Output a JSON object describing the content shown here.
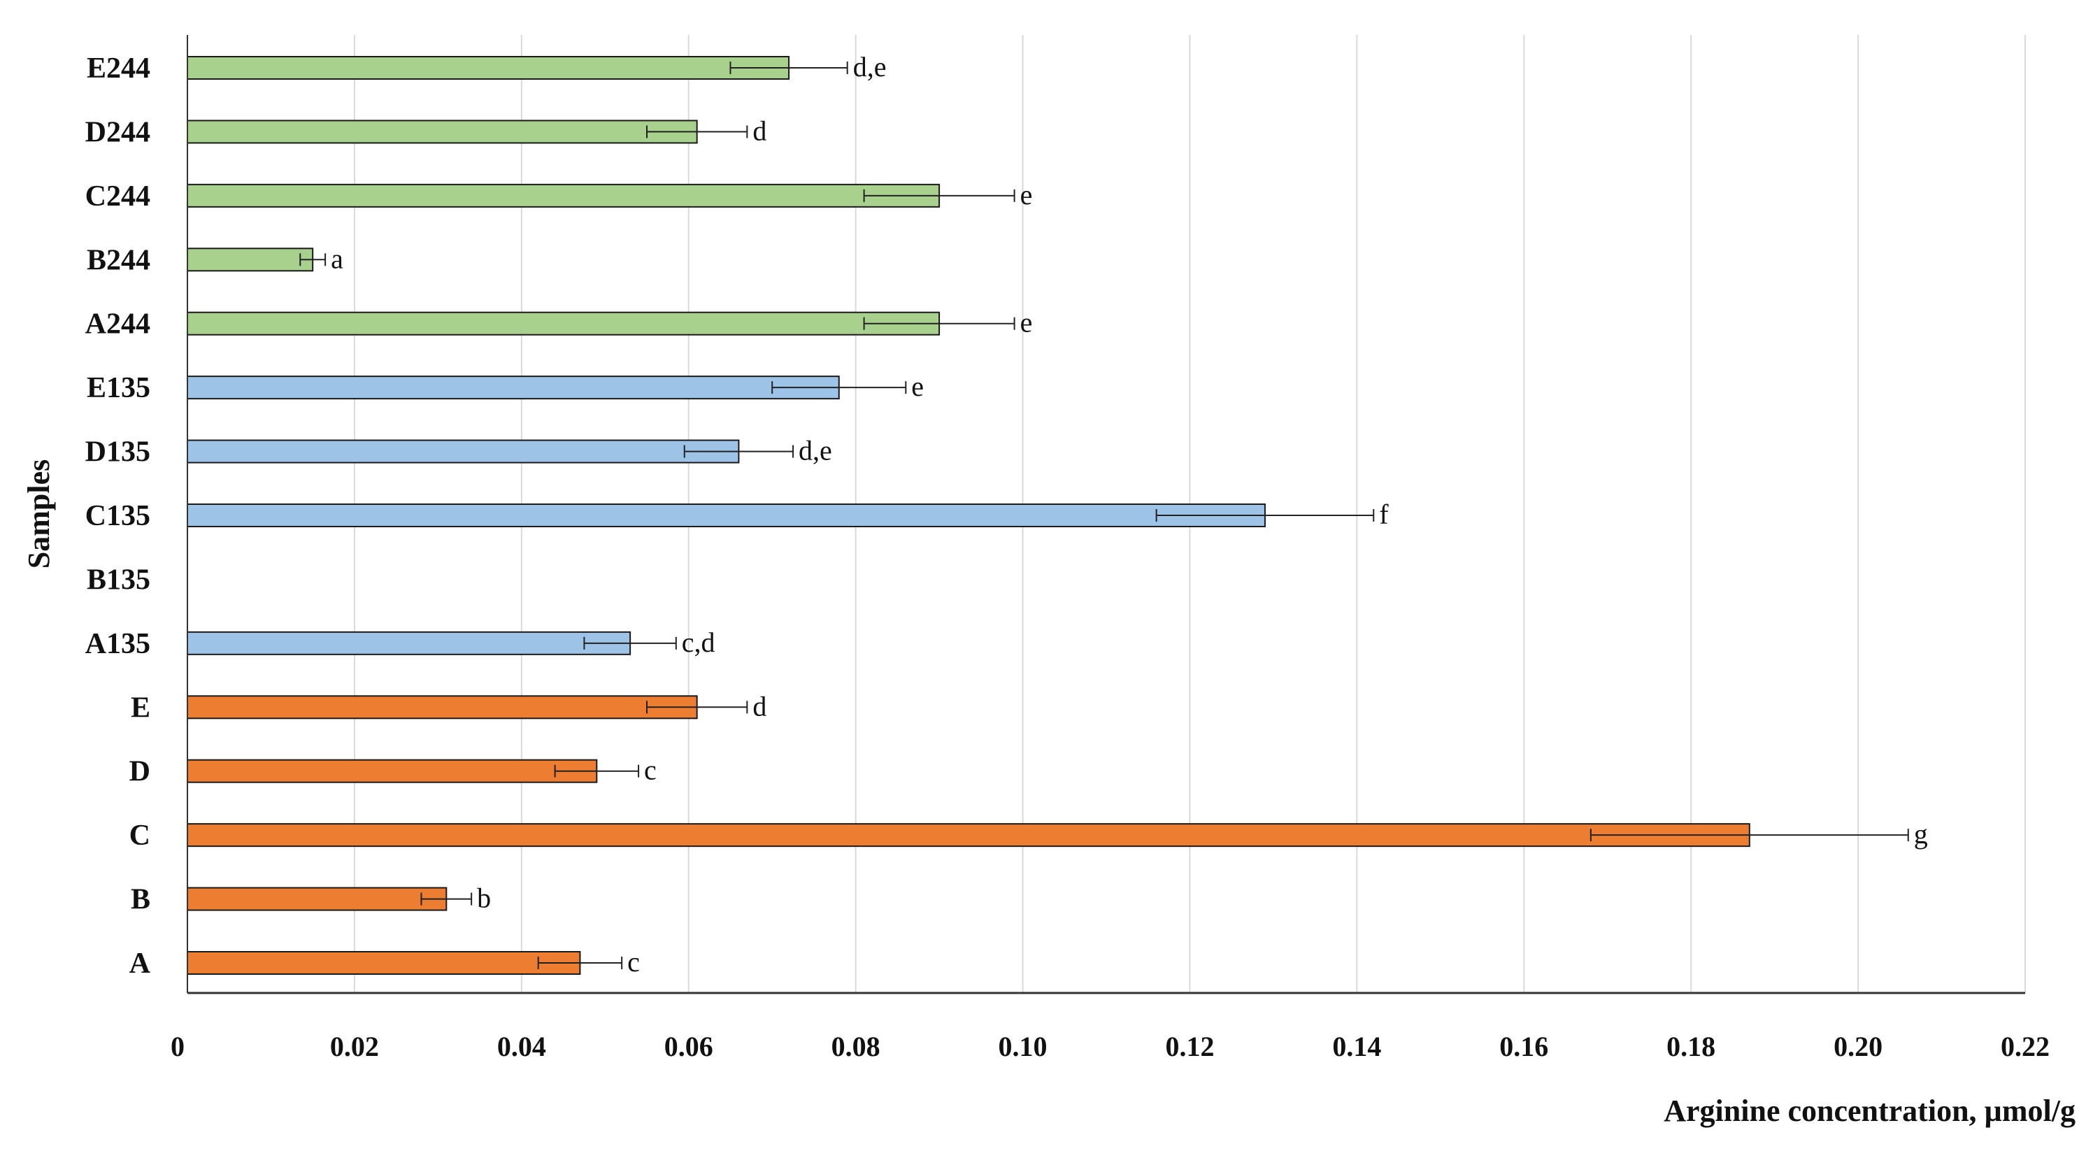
{
  "chart_data": {
    "type": "bar",
    "orientation": "horizontal",
    "xlabel": "Arginine concentration, µmol/g",
    "ylabel": "Samples",
    "xlim": [
      0,
      0.22
    ],
    "x_ticks": [
      0,
      0.02,
      0.04,
      0.06,
      0.08,
      0.1,
      0.12,
      0.14,
      0.16,
      0.18,
      0.2,
      0.22
    ],
    "x_tick_labels": [
      "0",
      "0.02",
      "0.04",
      "0.06",
      "0.08",
      "0.10",
      "0.12",
      "0.14",
      "0.16",
      "0.18",
      "0.20",
      "0.22"
    ],
    "grid": "vertical",
    "colors": {
      "group_244": "#a9d18e",
      "group_135": "#9dc3e6",
      "group_base": "#ed7d31",
      "bar_edge": "#1a1a1a",
      "grid": "#d9d9d9",
      "axis": "#333333"
    },
    "categories": [
      "E244",
      "D244",
      "C244",
      "B244",
      "A244",
      "E135",
      "D135",
      "C135",
      "B135",
      "A135",
      "E",
      "D",
      "C",
      "B",
      "A"
    ],
    "series": [
      {
        "name": "samples",
        "values": [
          0.072,
          0.061,
          0.09,
          0.015,
          0.09,
          0.078,
          0.066,
          0.129,
          null,
          0.053,
          0.061,
          0.049,
          0.187,
          0.031,
          0.047
        ],
        "errors": [
          0.007,
          0.006,
          0.009,
          0.0015,
          0.009,
          0.008,
          0.0065,
          0.013,
          null,
          0.0055,
          0.006,
          0.005,
          0.019,
          0.003,
          0.005
        ],
        "groups": [
          "244",
          "244",
          "244",
          "244",
          "244",
          "135",
          "135",
          "135",
          "135",
          "135",
          "base",
          "base",
          "base",
          "base",
          "base"
        ],
        "labels": [
          "d,e",
          "d",
          "e",
          "a",
          "e",
          "e",
          "d,e",
          "f",
          "",
          "c,d",
          "d",
          "c",
          "g",
          "b",
          "c"
        ]
      }
    ]
  }
}
